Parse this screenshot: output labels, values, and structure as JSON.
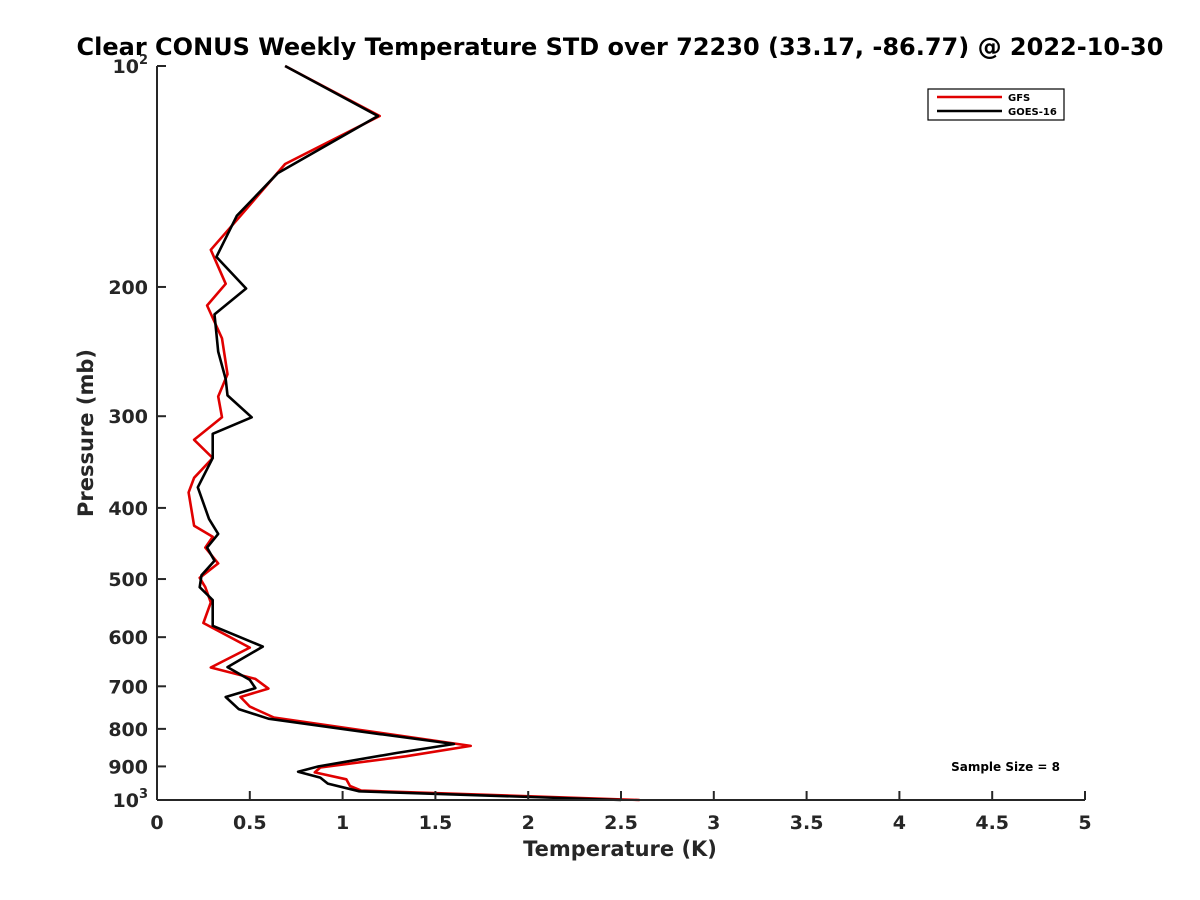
{
  "chart_data": {
    "type": "line",
    "title": "Clear CONUS Weekly Temperature STD over 72230 (33.17, -86.77) @ 2022-10-30",
    "xlabel": "Temperature (K)",
    "ylabel": "Pressure (mb)",
    "xlim": [
      0,
      5
    ],
    "ylim": [
      100,
      1000
    ],
    "y_scale": "log",
    "y_reversed": true,
    "grid": false,
    "legend_position": "top-right",
    "x_ticks": [
      "0",
      "0.5",
      "1",
      "1.5",
      "2",
      "2.5",
      "3",
      "3.5",
      "4",
      "4.5",
      "5"
    ],
    "y_ticks": [
      {
        "value": 100,
        "base": "10",
        "exp": "2"
      },
      {
        "value": 200,
        "label": "200"
      },
      {
        "value": 300,
        "label": "300"
      },
      {
        "value": 400,
        "label": "400"
      },
      {
        "value": 500,
        "label": "500"
      },
      {
        "value": 600,
        "label": "600"
      },
      {
        "value": 700,
        "label": "700"
      },
      {
        "value": 800,
        "label": "800"
      },
      {
        "value": 900,
        "label": "900"
      },
      {
        "value": 1000,
        "base": "10",
        "exp": "3"
      }
    ],
    "annotation": "Sample Size = 8",
    "series": [
      {
        "name": "GFS",
        "color": "#e00000",
        "points": [
          [
            0.69,
            100
          ],
          [
            1.2,
            117
          ],
          [
            0.69,
            136
          ],
          [
            0.45,
            160
          ],
          [
            0.29,
            178
          ],
          [
            0.37,
            198
          ],
          [
            0.27,
            212
          ],
          [
            0.35,
            235
          ],
          [
            0.38,
            263
          ],
          [
            0.33,
            282
          ],
          [
            0.35,
            301
          ],
          [
            0.2,
            323
          ],
          [
            0.3,
            342
          ],
          [
            0.2,
            364
          ],
          [
            0.17,
            381
          ],
          [
            0.2,
            423
          ],
          [
            0.3,
            438
          ],
          [
            0.26,
            453
          ],
          [
            0.33,
            476
          ],
          [
            0.23,
            498
          ],
          [
            0.26,
            513
          ],
          [
            0.29,
            538
          ],
          [
            0.25,
            574
          ],
          [
            0.5,
            620
          ],
          [
            0.29,
            660
          ],
          [
            0.53,
            684
          ],
          [
            0.6,
            705
          ],
          [
            0.45,
            724
          ],
          [
            0.5,
            746
          ],
          [
            0.63,
            772
          ],
          [
            1.1,
            803
          ],
          [
            1.69,
            844
          ],
          [
            1.34,
            872
          ],
          [
            0.88,
            903
          ],
          [
            0.85,
            917
          ],
          [
            1.02,
            937
          ],
          [
            1.04,
            957
          ],
          [
            1.1,
            971
          ],
          [
            2.6,
            1000
          ]
        ]
      },
      {
        "name": "GOES-16",
        "color": "#000000",
        "points": [
          [
            0.69,
            100
          ],
          [
            1.19,
            117
          ],
          [
            0.65,
            140
          ],
          [
            0.43,
            160
          ],
          [
            0.32,
            182
          ],
          [
            0.48,
            201
          ],
          [
            0.31,
            218
          ],
          [
            0.33,
            245
          ],
          [
            0.37,
            267
          ],
          [
            0.38,
            281
          ],
          [
            0.51,
            301
          ],
          [
            0.3,
            317
          ],
          [
            0.3,
            342
          ],
          [
            0.22,
            375
          ],
          [
            0.28,
            414
          ],
          [
            0.33,
            434
          ],
          [
            0.27,
            453
          ],
          [
            0.31,
            472
          ],
          [
            0.24,
            494
          ],
          [
            0.23,
            513
          ],
          [
            0.3,
            534
          ],
          [
            0.3,
            579
          ],
          [
            0.57,
            618
          ],
          [
            0.38,
            659
          ],
          [
            0.5,
            686
          ],
          [
            0.53,
            704
          ],
          [
            0.37,
            724
          ],
          [
            0.44,
            752
          ],
          [
            0.6,
            775
          ],
          [
            1.1,
            807
          ],
          [
            1.6,
            839
          ],
          [
            1.29,
            863
          ],
          [
            0.87,
            900
          ],
          [
            0.76,
            915
          ],
          [
            0.88,
            932
          ],
          [
            0.92,
            950
          ],
          [
            1.09,
            973
          ],
          [
            2.5,
            1000
          ]
        ]
      }
    ]
  }
}
